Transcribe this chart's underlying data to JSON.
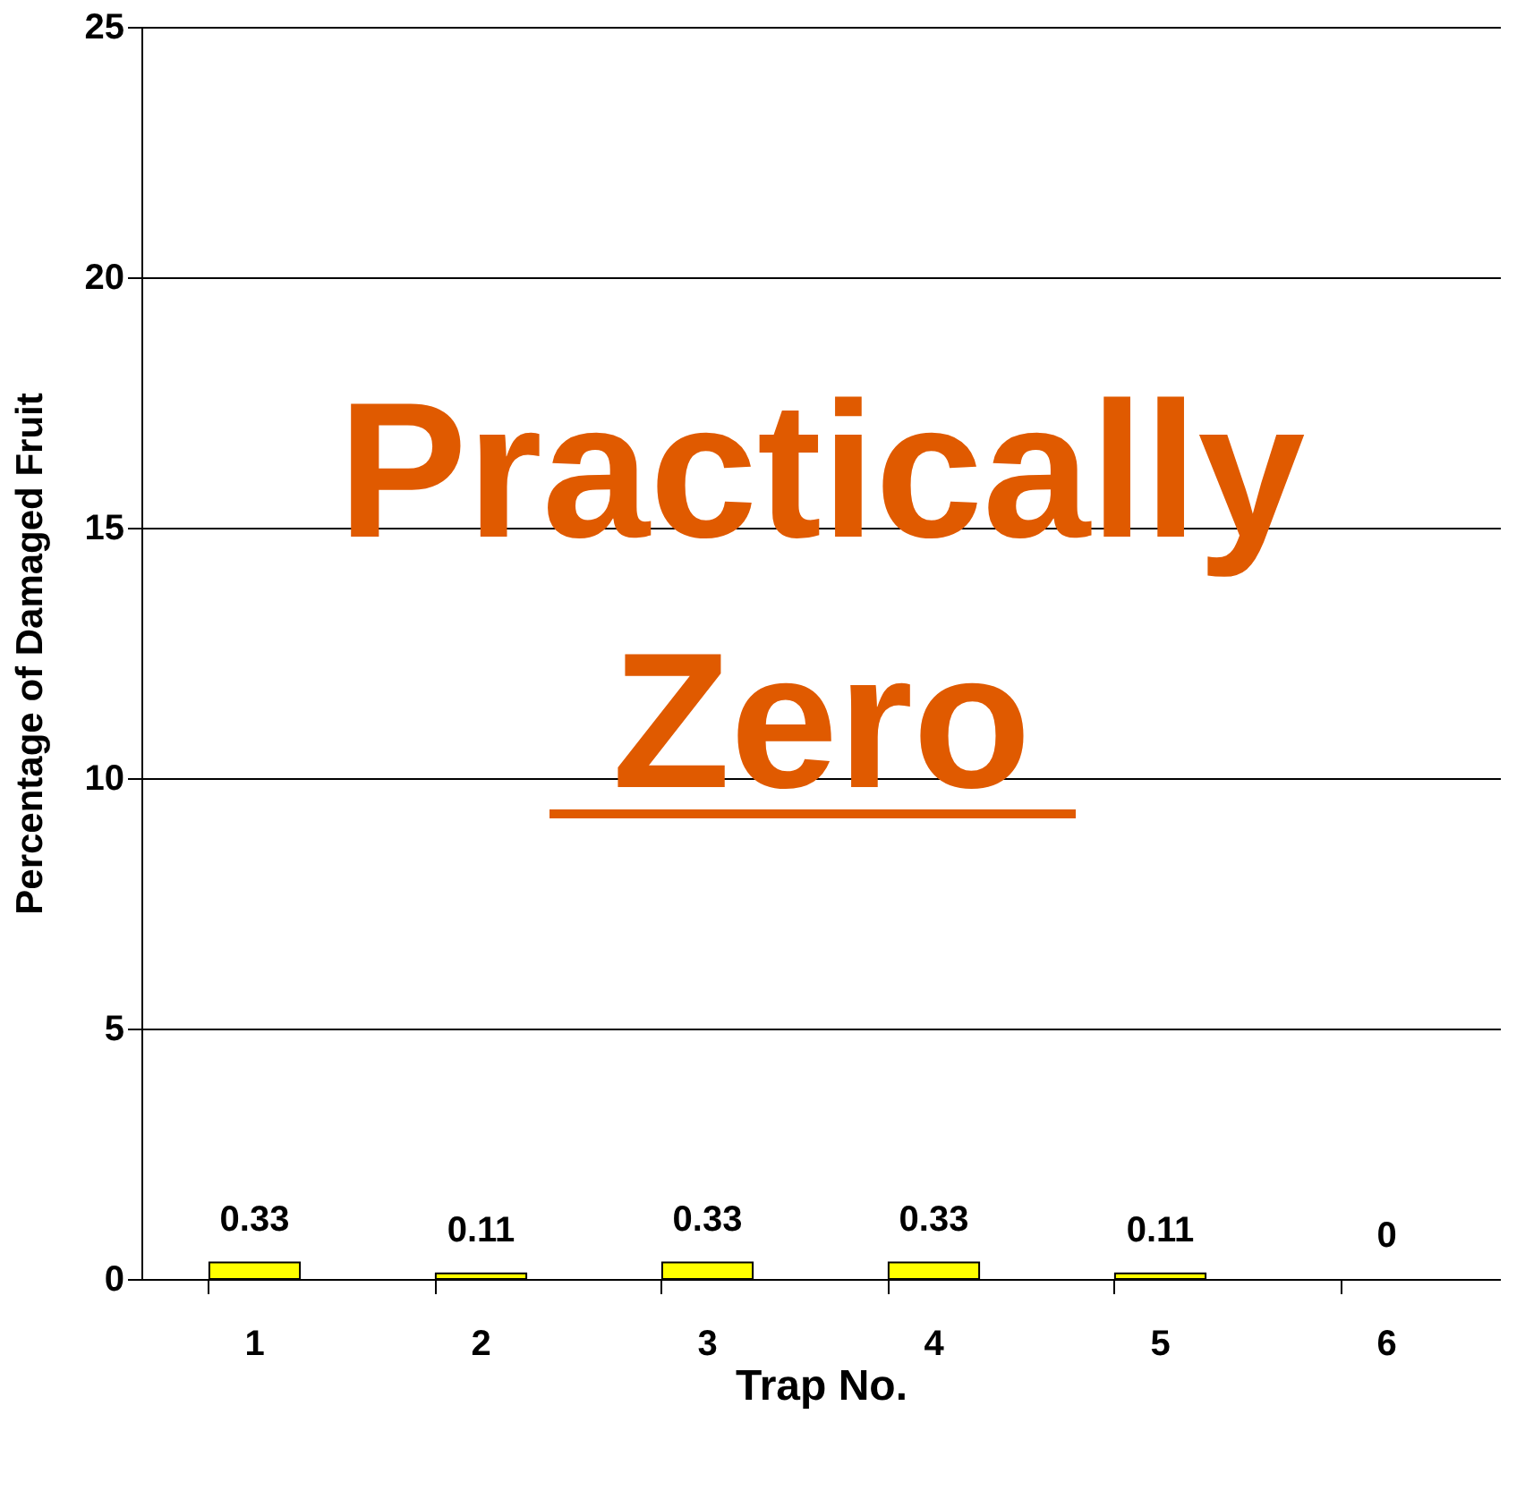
{
  "chart_data": {
    "type": "bar",
    "xlabel": "Trap No.",
    "ylabel": "Percentage of Damaged Fruit",
    "categories": [
      "1",
      "2",
      "3",
      "4",
      "5",
      "6"
    ],
    "values": [
      0.33,
      0.11,
      0.33,
      0.33,
      0.11,
      0
    ],
    "color": "#ffff00",
    "ylim": [
      0,
      25
    ],
    "yticks": [
      0,
      5,
      10,
      15,
      20,
      25
    ],
    "grid": "y",
    "data_labels": true,
    "annotations": [
      "Practically",
      "Zero"
    ]
  }
}
